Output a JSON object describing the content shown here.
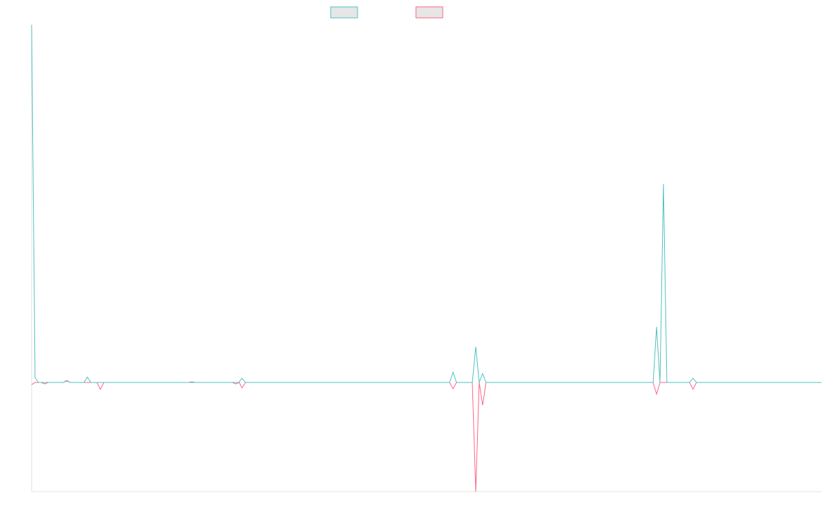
{
  "chart_data": {
    "type": "line",
    "xlim": [
      0,
      1149
    ],
    "ylim": [
      -100,
      327.7
    ],
    "series": [
      {
        "color": "#4bc0c0",
        "x": [
          0,
          5,
          10,
          46,
          51,
          56,
          76,
          81,
          86,
          301,
          306,
          311,
          608,
          613,
          618,
          641,
          646,
          651,
          656,
          661,
          904,
          909,
          914,
          919,
          924,
          957,
          962,
          967,
          1149
        ],
        "values": [
          327.7,
          4.4,
          0,
          0,
          1.9,
          0,
          0,
          5,
          0,
          0,
          3.8,
          0,
          0,
          9.4,
          0,
          0,
          32.7,
          0,
          8.2,
          0,
          0,
          50.9,
          0,
          181.8,
          0,
          0,
          3.8,
          0,
          0
        ]
      },
      {
        "color": "#ff6384",
        "x": [
          0,
          5,
          14,
          19,
          24,
          46,
          51,
          56,
          95,
          100,
          105,
          228,
          233,
          238,
          292,
          297,
          302,
          306,
          311,
          608,
          613,
          618,
          641,
          646,
          651,
          656,
          661,
          904,
          909,
          914,
          957,
          962,
          967,
          1149
        ],
        "values": [
          -1.9,
          0,
          0,
          -1.3,
          0,
          0,
          1.3,
          0,
          0,
          -6.3,
          0,
          0,
          0.6,
          0,
          0,
          -1.3,
          0,
          -5,
          0,
          0,
          -5.7,
          0,
          0,
          -100,
          0,
          -20.8,
          0,
          0,
          -10.7,
          0,
          0,
          -6.3,
          0,
          0
        ]
      }
    ]
  }
}
